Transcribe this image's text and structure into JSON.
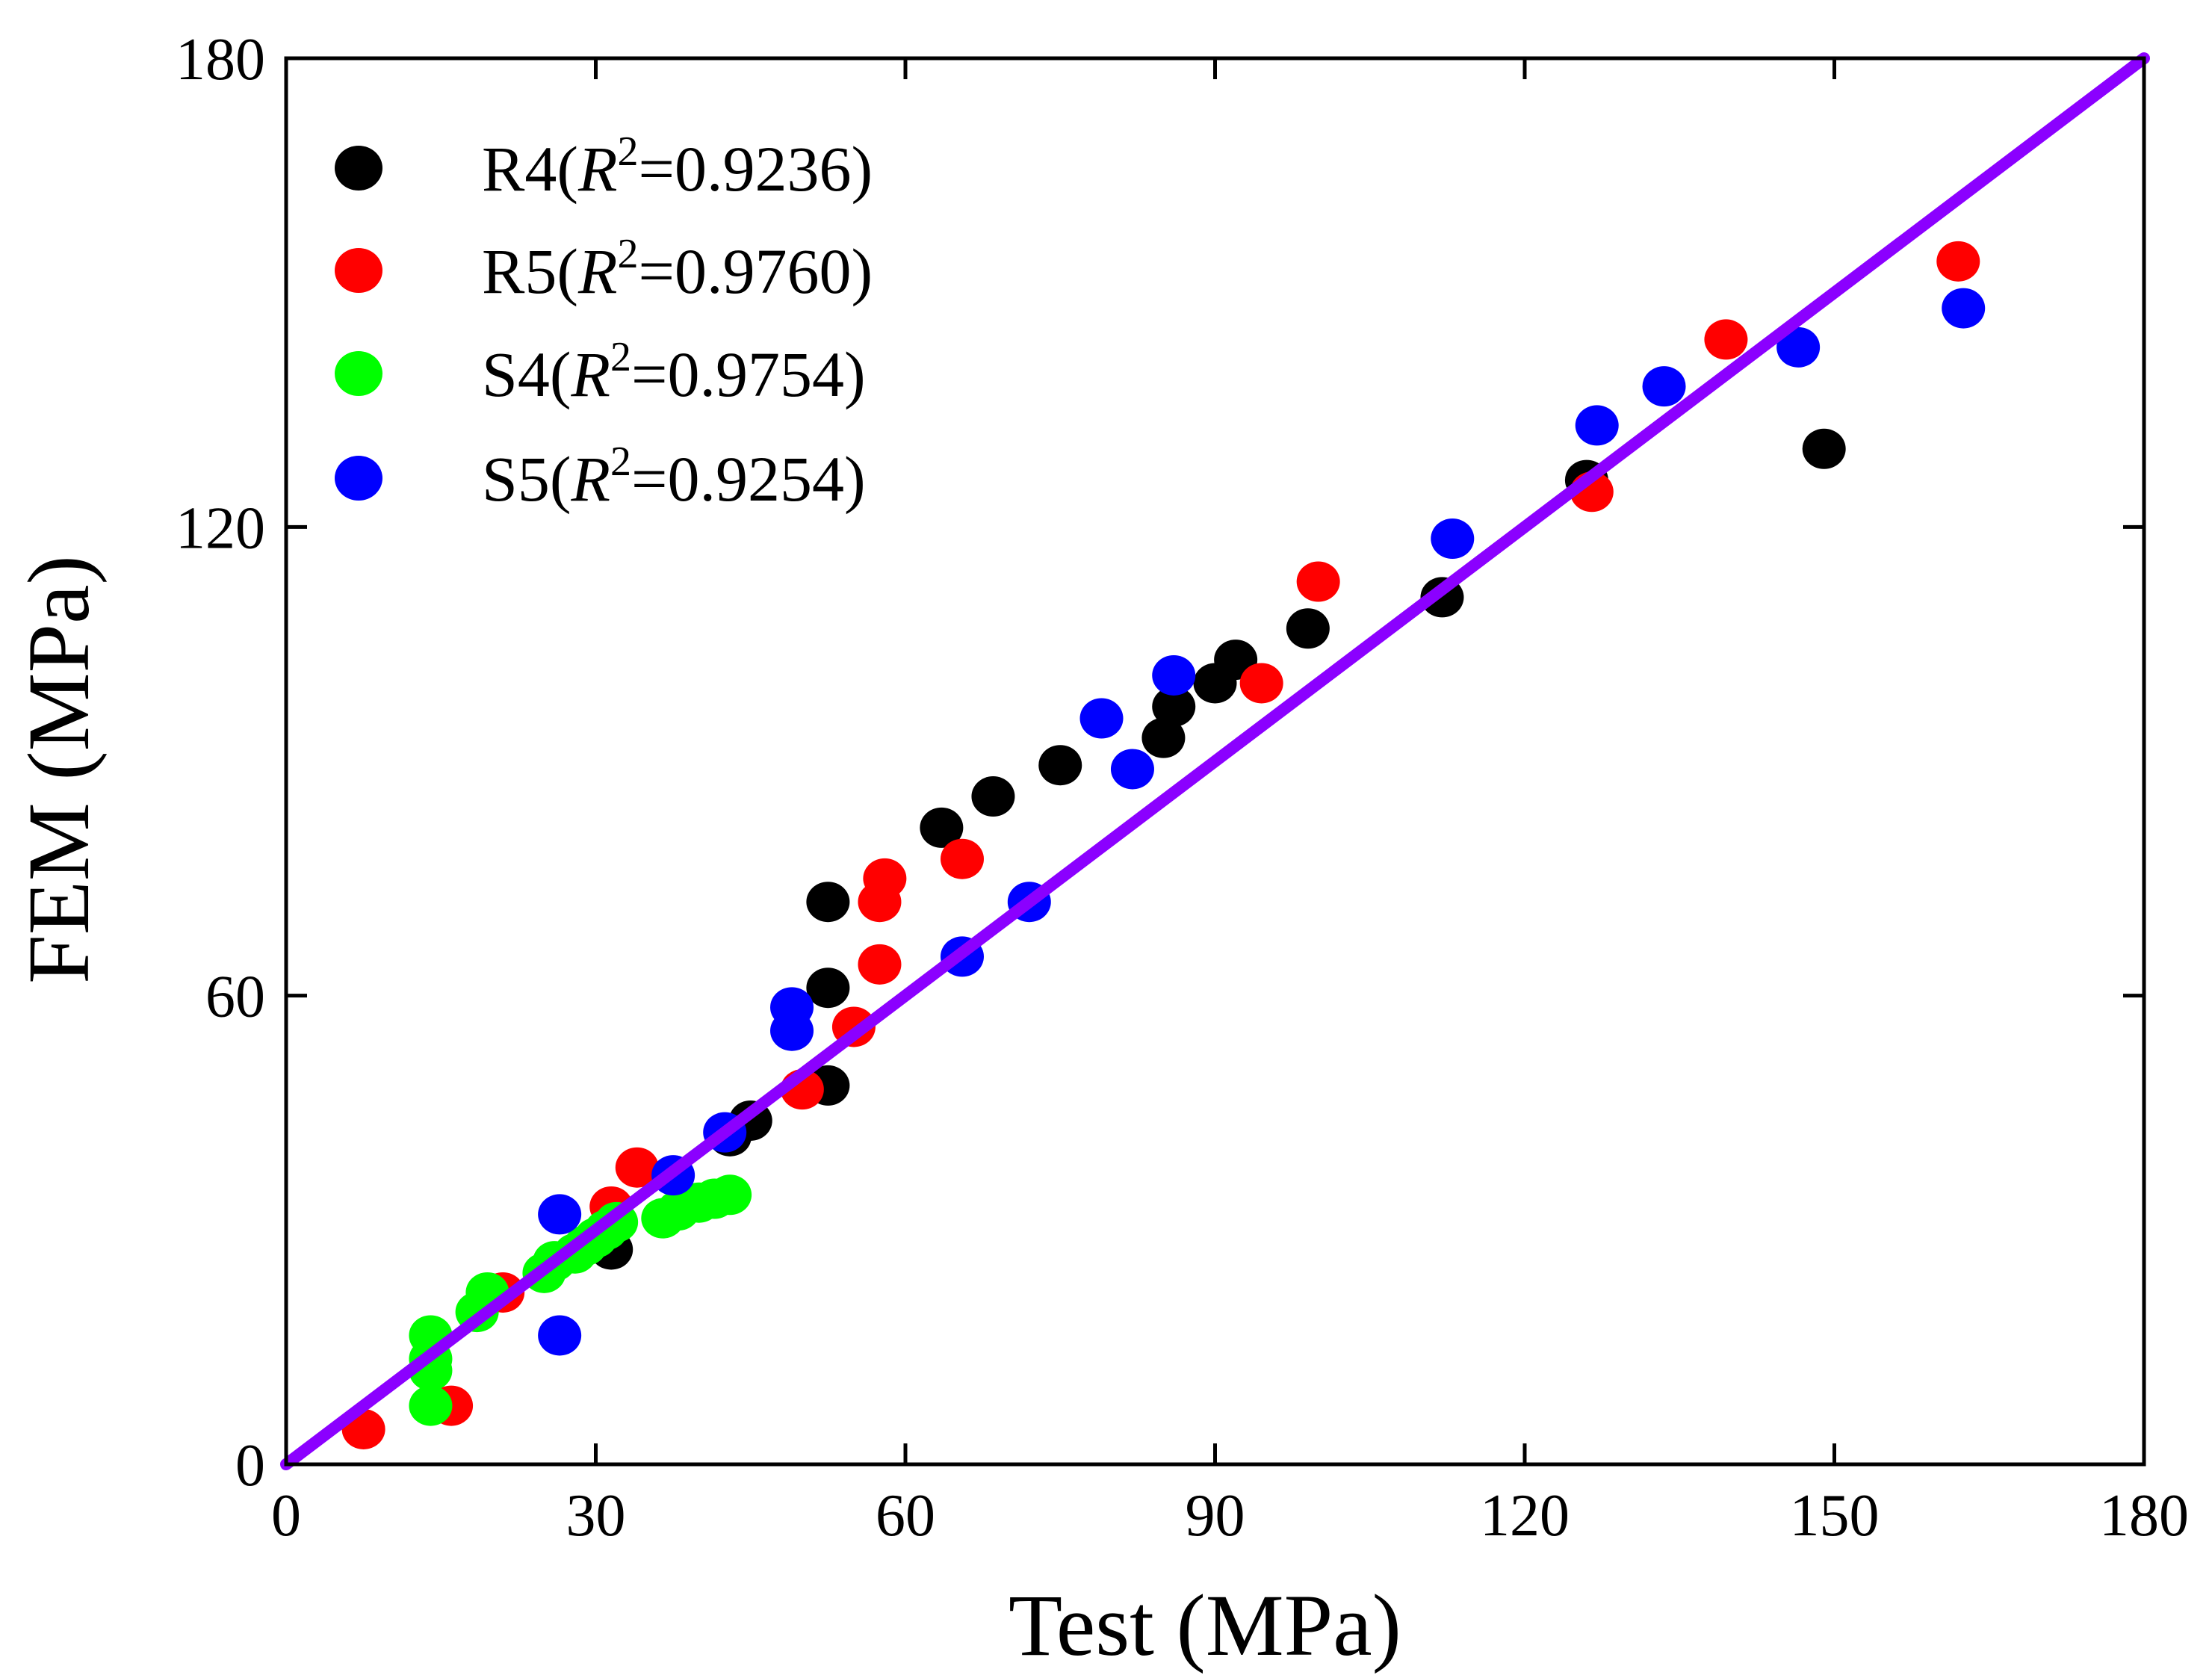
{
  "chart_data": {
    "type": "scatter",
    "title": "",
    "xlabel": "Test (MPa)",
    "ylabel": "FEM (MPa)",
    "xlim": [
      0,
      180
    ],
    "ylim": [
      0,
      180
    ],
    "xticks": [
      0,
      30,
      60,
      90,
      120,
      150,
      180
    ],
    "yticks": [
      0,
      60,
      120,
      180
    ],
    "xtick_labels": [
      "0",
      "30",
      "60",
      "90",
      "120",
      "150",
      "180"
    ],
    "ytick_labels": [
      "0",
      "60",
      "120",
      "180"
    ],
    "grid": false,
    "legend_position": "top-left",
    "reference_line": {
      "name": "y = x",
      "color": "#8B00FF",
      "x": [
        0,
        180
      ],
      "y": [
        0,
        180
      ]
    },
    "series": [
      {
        "name": "R4",
        "label_prefix": "R4(",
        "label_r": "R",
        "label_sup": "2",
        "label_suffix": "=0.9236)",
        "r2": 0.9236,
        "color": "#000000",
        "points": [
          [
            31.5,
            27.5
          ],
          [
            43,
            42
          ],
          [
            45,
            44
          ],
          [
            52.5,
            48.5
          ],
          [
            52.5,
            61
          ],
          [
            52.5,
            72
          ],
          [
            63.5,
            81.5
          ],
          [
            68.5,
            85.5
          ],
          [
            75,
            89.5
          ],
          [
            85,
            93
          ],
          [
            86,
            97
          ],
          [
            90,
            100
          ],
          [
            92,
            103
          ],
          [
            99,
            107
          ],
          [
            112,
            111
          ],
          [
            126,
            126
          ],
          [
            149,
            130
          ]
        ]
      },
      {
        "name": "R5",
        "label_prefix": "R5(",
        "label_r": "R",
        "label_sup": "2",
        "label_suffix": "=0.9760)",
        "r2": 0.976,
        "color": "#FF0000",
        "points": [
          [
            7.5,
            4.5
          ],
          [
            16,
            7.5
          ],
          [
            21,
            22
          ],
          [
            31.5,
            33
          ],
          [
            34,
            38
          ],
          [
            50,
            48
          ],
          [
            55,
            56
          ],
          [
            57.5,
            64
          ],
          [
            57.5,
            72
          ],
          [
            58,
            75
          ],
          [
            65.5,
            77.5
          ],
          [
            94.5,
            100
          ],
          [
            100,
            113
          ],
          [
            126.5,
            124.5
          ],
          [
            139.5,
            144
          ],
          [
            162,
            154
          ]
        ]
      },
      {
        "name": "S4",
        "label_prefix": "S4(",
        "label_r": "R",
        "label_sup": "2",
        "label_suffix": "=0.9754)",
        "r2": 0.9754,
        "color": "#00FF00",
        "points": [
          [
            14,
            7.5
          ],
          [
            14,
            12
          ],
          [
            14,
            13.5
          ],
          [
            14,
            16.5
          ],
          [
            18.5,
            19.5
          ],
          [
            19.5,
            22
          ],
          [
            25,
            24.5
          ],
          [
            26,
            26
          ],
          [
            28,
            27
          ],
          [
            29,
            28
          ],
          [
            30,
            29
          ],
          [
            31,
            30
          ],
          [
            32,
            31
          ],
          [
            36.5,
            31.5
          ],
          [
            38,
            32.5
          ],
          [
            40,
            33.5
          ],
          [
            41.5,
            34
          ],
          [
            43,
            34.5
          ]
        ]
      },
      {
        "name": "S5",
        "label_prefix": "S5(",
        "label_r": "R",
        "label_sup": "2",
        "label_suffix": "=0.9254)",
        "r2": 0.9254,
        "color": "#0000FF",
        "points": [
          [
            26.5,
            16.5
          ],
          [
            26.5,
            32
          ],
          [
            37.5,
            37
          ],
          [
            42.5,
            42.5
          ],
          [
            49,
            55.5
          ],
          [
            49,
            58.5
          ],
          [
            65.5,
            65
          ],
          [
            72,
            72
          ],
          [
            79,
            95.5
          ],
          [
            82,
            89
          ],
          [
            86,
            101
          ],
          [
            113,
            118.5
          ],
          [
            127,
            133
          ],
          [
            133.5,
            138
          ],
          [
            146.5,
            143
          ],
          [
            162.5,
            148
          ]
        ]
      }
    ]
  }
}
